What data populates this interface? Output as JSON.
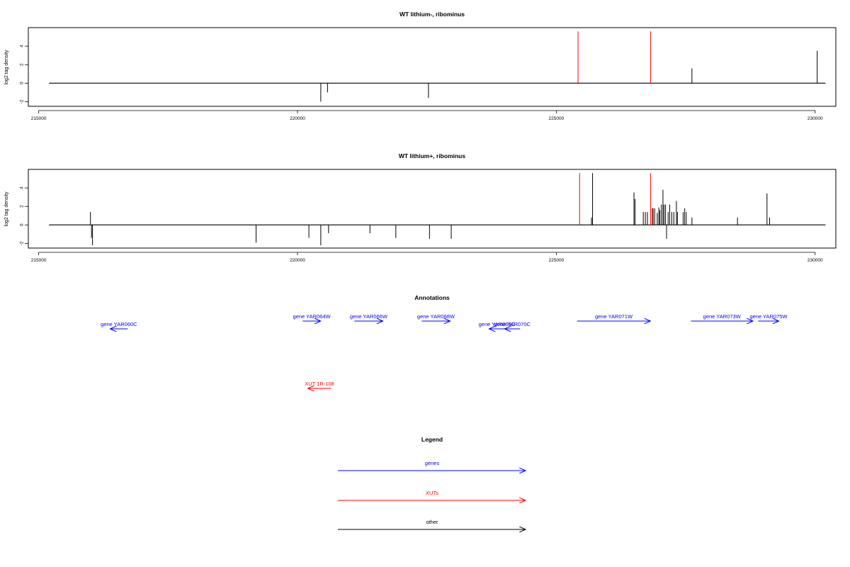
{
  "chart_data": [
    {
      "type": "bar",
      "title": "WT lithium-, ribominus",
      "ylabel": "log2 tag density",
      "xlim": [
        214800,
        230400
      ],
      "ylim": [
        -2.5,
        6
      ],
      "xticks": [
        215000,
        220000,
        225000,
        230000
      ],
      "yticks": [
        -2,
        0,
        2,
        4
      ],
      "baseline": [
        215200,
        230200
      ],
      "series": [
        {
          "color": "#000000",
          "points": [
            {
              "x": 220450,
              "y": -2.0
            },
            {
              "x": 220580,
              "y": -1.0
            },
            {
              "x": 222530,
              "y": -1.6
            },
            {
              "x": 227620,
              "y": 1.6
            },
            {
              "x": 230040,
              "y": 3.5
            }
          ]
        },
        {
          "color": "#ff0000",
          "points": [
            {
              "x": 225420,
              "y": 5.6
            },
            {
              "x": 226820,
              "y": 5.6
            }
          ]
        }
      ]
    },
    {
      "type": "bar",
      "title": "WT lithium+, ribominus",
      "ylabel": "log2 tag density",
      "xlim": [
        214800,
        230400
      ],
      "ylim": [
        -2.5,
        6
      ],
      "xticks": [
        215000,
        220000,
        225000,
        230000
      ],
      "yticks": [
        -2,
        0,
        2,
        4
      ],
      "baseline": [
        215200,
        230200
      ],
      "series": [
        {
          "color": "#000000",
          "points": [
            {
              "x": 216000,
              "y": 1.4
            },
            {
              "x": 216020,
              "y": -1.4
            },
            {
              "x": 216040,
              "y": -2.2
            },
            {
              "x": 219200,
              "y": -1.9
            },
            {
              "x": 220220,
              "y": -1.4
            },
            {
              "x": 220450,
              "y": -2.2
            },
            {
              "x": 220600,
              "y": -0.9
            },
            {
              "x": 221400,
              "y": -0.9
            },
            {
              "x": 221900,
              "y": -1.4
            },
            {
              "x": 222550,
              "y": -1.5
            },
            {
              "x": 222970,
              "y": -1.5
            },
            {
              "x": 225680,
              "y": 0.8
            },
            {
              "x": 225700,
              "y": 5.6
            },
            {
              "x": 226500,
              "y": 3.5
            },
            {
              "x": 226520,
              "y": 2.8
            },
            {
              "x": 226680,
              "y": 1.4
            },
            {
              "x": 226720,
              "y": 1.4
            },
            {
              "x": 226760,
              "y": 1.4
            },
            {
              "x": 226850,
              "y": 1.8
            },
            {
              "x": 226870,
              "y": 1.8
            },
            {
              "x": 226900,
              "y": 1.8
            },
            {
              "x": 226950,
              "y": 1.3
            },
            {
              "x": 226980,
              "y": 1.9
            },
            {
              "x": 227000,
              "y": 1.6
            },
            {
              "x": 227030,
              "y": 2.2
            },
            {
              "x": 227060,
              "y": 3.8
            },
            {
              "x": 227080,
              "y": 2.2
            },
            {
              "x": 227110,
              "y": 2.2
            },
            {
              "x": 227130,
              "y": -1.5
            },
            {
              "x": 227160,
              "y": 1.4
            },
            {
              "x": 227190,
              "y": 2.2
            },
            {
              "x": 227230,
              "y": 1.4
            },
            {
              "x": 227270,
              "y": 1.4
            },
            {
              "x": 227320,
              "y": 2.6
            },
            {
              "x": 227340,
              "y": 1.4
            },
            {
              "x": 227450,
              "y": 1.4
            },
            {
              "x": 227480,
              "y": 1.8
            },
            {
              "x": 227510,
              "y": 1.4
            },
            {
              "x": 227620,
              "y": 0.8
            },
            {
              "x": 228500,
              "y": 0.8
            },
            {
              "x": 229070,
              "y": 3.4
            },
            {
              "x": 229120,
              "y": 0.8
            }
          ]
        },
        {
          "color": "#ff0000",
          "points": [
            {
              "x": 225450,
              "y": 5.6
            },
            {
              "x": 226820,
              "y": 5.6
            },
            {
              "x": 226850,
              "y": 1.8
            }
          ]
        }
      ]
    }
  ],
  "annotations": {
    "title": "Annotations",
    "genes": [
      {
        "label": "gene YAR060C",
        "start": 216720,
        "end": 216380,
        "row": 1
      },
      {
        "label": "gene YAR064W",
        "start": 220100,
        "end": 220450,
        "row": 0
      },
      {
        "label": "gene YAR066W",
        "start": 221100,
        "end": 221650,
        "row": 0
      },
      {
        "label": "gene YAR068W",
        "start": 222400,
        "end": 222950,
        "row": 0
      },
      {
        "label": "gene YAR069C",
        "start": 224000,
        "end": 223700,
        "row": 1
      },
      {
        "label": "gene YAR070C",
        "start": 224300,
        "end": 224000,
        "row": 1
      },
      {
        "label": "gene YAR071W",
        "start": 225400,
        "end": 226820,
        "row": 0
      },
      {
        "label": "gene YAR073W",
        "start": 227600,
        "end": 228800,
        "row": 0
      },
      {
        "label": "gene YAR075W",
        "start": 228900,
        "end": 229300,
        "row": 0
      }
    ],
    "xuts": [
      {
        "label": "XUT 1R-108",
        "start": 220650,
        "end": 220200
      }
    ]
  },
  "legend": {
    "title": "Legend",
    "items": [
      {
        "label": "genes",
        "color": "#0000ff"
      },
      {
        "label": "XUTs",
        "color": "#ff0000"
      },
      {
        "label": "other",
        "color": "#000000"
      }
    ]
  }
}
